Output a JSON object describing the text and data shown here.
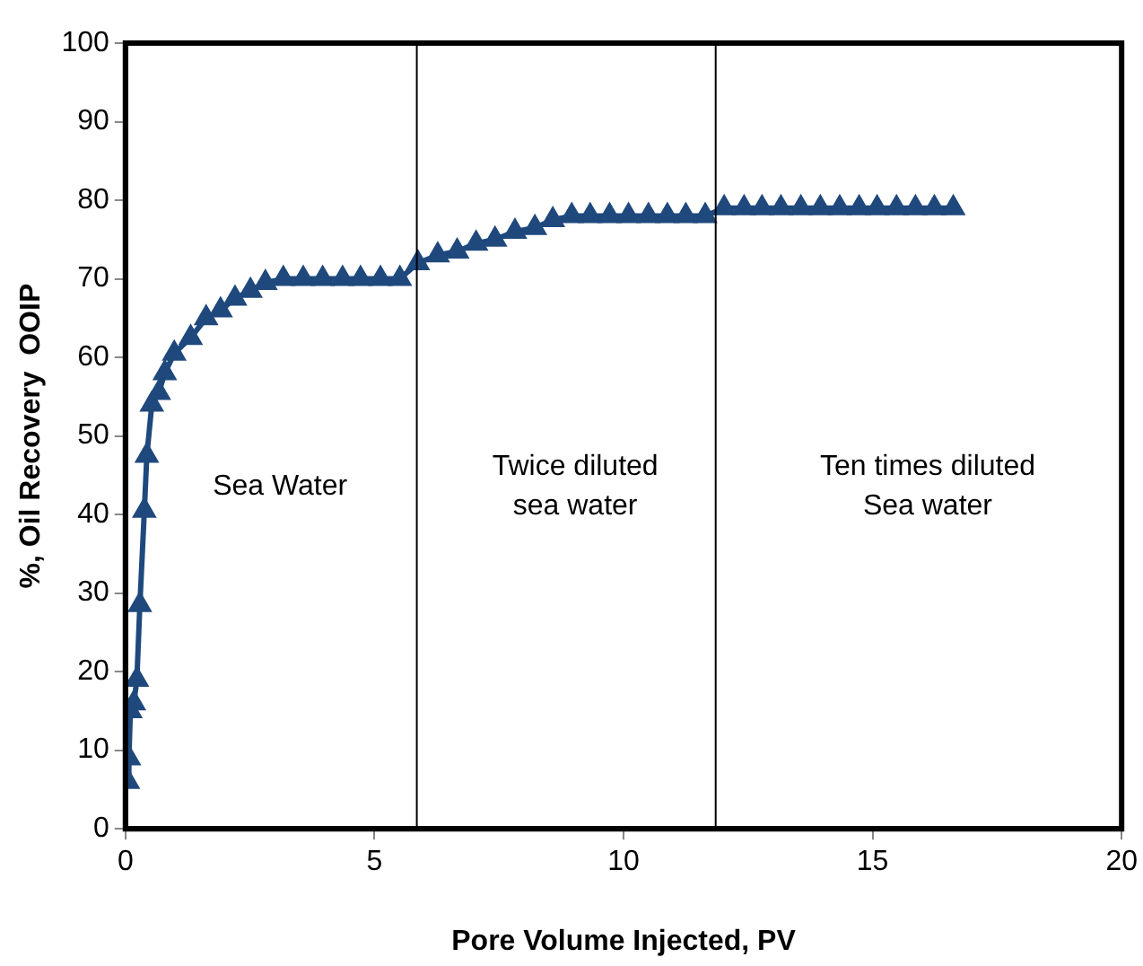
{
  "chart_data": {
    "type": "line",
    "xlabel": "Pore Volume Injected, PV",
    "ylabel": "%, Oil Recovery  OOIP",
    "xlim": [
      0,
      20
    ],
    "xticks": [
      0,
      5,
      10,
      15,
      20
    ],
    "ylim": [
      0,
      100
    ],
    "yticks": [
      0,
      10,
      20,
      30,
      40,
      50,
      60,
      70,
      80,
      90,
      100
    ],
    "grid": false,
    "legend": false,
    "marker": "triangle",
    "line_style": "solid",
    "series": [
      {
        "color": "#1f497d",
        "x": [
          0.05,
          0.07,
          0.1,
          0.17,
          0.23,
          0.29,
          0.38,
          0.43,
          0.53,
          0.67,
          0.79,
          0.98,
          1.31,
          1.62,
          1.91,
          2.2,
          2.51,
          2.81,
          3.17,
          3.57,
          3.96,
          4.36,
          4.72,
          5.12,
          5.51,
          5.87,
          6.27,
          6.66,
          7.04,
          7.42,
          7.82,
          8.22,
          8.58,
          8.96,
          9.33,
          9.72,
          10.1,
          10.5,
          10.88,
          11.25,
          11.64,
          12.02,
          12.42,
          12.78,
          13.16,
          13.56,
          13.95,
          14.34,
          14.73,
          15.09,
          15.48,
          15.86,
          16.24,
          16.62
        ],
        "values": [
          6,
          9,
          15,
          16,
          19,
          28.5,
          40.5,
          47.5,
          54,
          55.5,
          58,
          60.5,
          62.5,
          65,
          66,
          67.5,
          68.5,
          69.5,
          70,
          70,
          70,
          70,
          70,
          70,
          70,
          72,
          73,
          73.5,
          74.5,
          75,
          76,
          76.5,
          77.5,
          78,
          78,
          78,
          78,
          78,
          78,
          78,
          78,
          79,
          79,
          79,
          79,
          79,
          79,
          79,
          79,
          79,
          79,
          79,
          79,
          79
        ]
      }
    ],
    "ref_lines": [
      {
        "axis": "x",
        "value": 5.85,
        "color": "#000000"
      },
      {
        "axis": "x",
        "value": 11.85,
        "color": "#000000"
      }
    ],
    "annotations": [
      "Sea Water",
      "Twice diluted\nsea water",
      "Ten times diluted\nSea water"
    ]
  }
}
